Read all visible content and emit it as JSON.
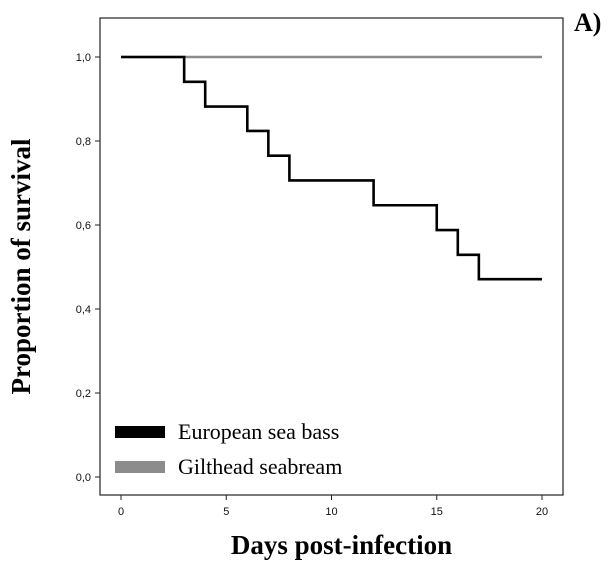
{
  "panel_label": "A)",
  "chart_data": {
    "type": "line",
    "step": true,
    "title": "",
    "xlabel": "Days post-infection",
    "ylabel": "Proportion of survival",
    "xlim": [
      0,
      20
    ],
    "ylim": [
      0,
      1
    ],
    "xticks": [
      0,
      5,
      10,
      15,
      20
    ],
    "xtick_labels": [
      "0",
      "5",
      "10",
      "15",
      "20"
    ],
    "yticks": [
      0,
      0.2,
      0.4,
      0.6,
      0.8,
      1.0
    ],
    "ytick_labels": [
      "0,0",
      "0,2",
      "0,4",
      "0,6",
      "0,8",
      "1,0"
    ],
    "grid": false,
    "legend_position": "bottom-left",
    "series": [
      {
        "name": "European sea bass",
        "color": "#000000",
        "x": [
          0,
          3,
          4,
          6,
          7,
          8,
          12,
          15,
          16,
          17,
          20
        ],
        "y": [
          1.0,
          0.941,
          0.882,
          0.824,
          0.765,
          0.706,
          0.647,
          0.588,
          0.529,
          0.471,
          0.471
        ]
      },
      {
        "name": "Gilthead seabream",
        "color": "#8c8c8c",
        "x": [
          0,
          20
        ],
        "y": [
          1.0,
          1.0
        ]
      }
    ]
  }
}
